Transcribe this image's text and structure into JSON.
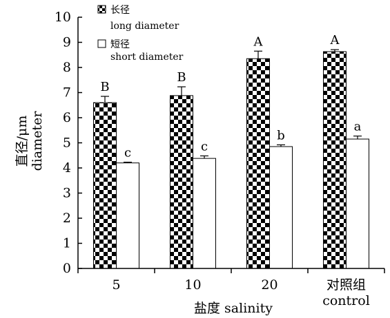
{
  "chart_data": {
    "type": "bar",
    "categories": [
      "5",
      "10",
      "20",
      "对照组"
    ],
    "categories_line2": [
      "",
      "",
      "",
      "control"
    ],
    "xlabel": "盐度 salinity",
    "ylabel": "直径/μm",
    "ylabel_line2": "diameter",
    "ylim": [
      0,
      10
    ],
    "yticks": [
      0,
      1,
      2,
      3,
      4,
      5,
      6,
      7,
      8,
      9,
      10
    ],
    "grid": false,
    "legend_position": "top-left",
    "series": [
      {
        "name": "长径",
        "name_line2": "long diameter",
        "pattern": "checker",
        "values": [
          6.6,
          6.88,
          8.35,
          8.63
        ],
        "errors": [
          0.25,
          0.35,
          0.3,
          0.08
        ],
        "significance": [
          "B",
          "B",
          "A",
          "A"
        ]
      },
      {
        "name": "短径",
        "name_line2": "short diameter",
        "pattern": "plain",
        "values": [
          4.2,
          4.38,
          4.85,
          5.15
        ],
        "errors": [
          0.03,
          0.1,
          0.07,
          0.12
        ],
        "significance": [
          "c",
          "c",
          "b",
          "a"
        ]
      }
    ]
  }
}
